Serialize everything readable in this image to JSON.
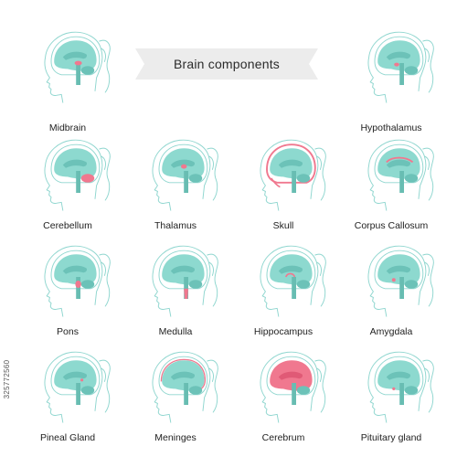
{
  "title": "Brain components",
  "stock_id": "325772560",
  "colors": {
    "outline": "#8fd6cf",
    "brain": "#8dd9cf",
    "brain_inner": "#6cc2b8",
    "stem": "#68bdb2",
    "highlight": "#f0788f",
    "ribbon": "#ececec"
  },
  "cells": [
    {
      "label": "Midbrain",
      "highlight": "midbrain"
    },
    {
      "label": "Hypothalamus",
      "highlight": "hypothalamus"
    },
    {
      "label": "Cerebellum",
      "highlight": "cerebellum"
    },
    {
      "label": "Thalamus",
      "highlight": "thalamus"
    },
    {
      "label": "Skull",
      "highlight": "skull"
    },
    {
      "label": "Corpus Callosum",
      "highlight": "corpus-callosum"
    },
    {
      "label": "Pons",
      "highlight": "pons"
    },
    {
      "label": "Medulla",
      "highlight": "medulla"
    },
    {
      "label": "Hippocampus",
      "highlight": "hippocampus"
    },
    {
      "label": "Amygdala",
      "highlight": "amygdala"
    },
    {
      "label": "Pineal Gland",
      "highlight": "pineal-gland"
    },
    {
      "label": "Meninges",
      "highlight": "meninges"
    },
    {
      "label": "Cerebrum",
      "highlight": "cerebrum"
    },
    {
      "label": "Pituitary gland",
      "highlight": "pituitary-gland"
    }
  ]
}
